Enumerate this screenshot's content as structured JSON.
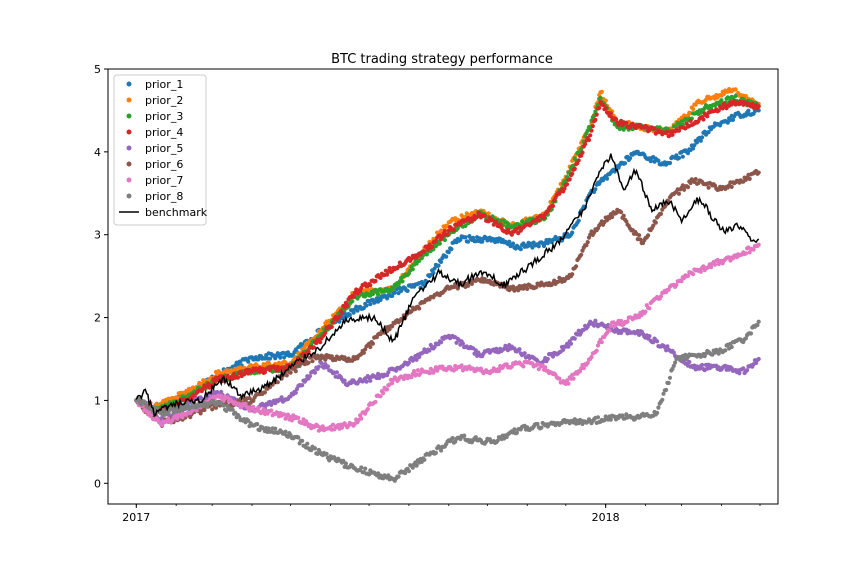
{
  "chart_data": {
    "type": "scatter",
    "title": "BTC trading strategy performance",
    "xlabel": "",
    "ylabel": "",
    "x_axis": {
      "kind": "date",
      "domain": [
        "2016-12-10",
        "2018-05-15"
      ],
      "tick_labels": [
        "2017",
        "2018"
      ],
      "tick_dates": [
        "2017-01-01",
        "2018-01-01"
      ]
    },
    "ylim": [
      -0.25,
      5.0
    ],
    "y_ticks": [
      0,
      1,
      2,
      3,
      4,
      5
    ],
    "grid": false,
    "legend_position": "top-left",
    "series": [
      {
        "name": "prior_1",
        "style": "points",
        "color": "#1f77b4",
        "points": [
          [
            "2017-01-01",
            1.0
          ],
          [
            "2017-01-15",
            0.92
          ],
          [
            "2017-02-05",
            1.05
          ],
          [
            "2017-03-05",
            1.3
          ],
          [
            "2017-04-01",
            1.52
          ],
          [
            "2017-05-01",
            1.55
          ],
          [
            "2017-05-25",
            1.85
          ],
          [
            "2017-06-20",
            2.1
          ],
          [
            "2017-07-20",
            2.3
          ],
          [
            "2017-08-12",
            2.4
          ],
          [
            "2017-09-08",
            2.95
          ],
          [
            "2017-10-05",
            2.95
          ],
          [
            "2017-10-25",
            2.85
          ],
          [
            "2017-11-15",
            2.9
          ],
          [
            "2017-12-05",
            3.0
          ],
          [
            "2017-12-20",
            3.5
          ],
          [
            "2018-01-05",
            3.75
          ],
          [
            "2018-01-25",
            4.0
          ],
          [
            "2018-02-15",
            3.85
          ],
          [
            "2018-03-05",
            4.0
          ],
          [
            "2018-03-25",
            4.3
          ],
          [
            "2018-04-15",
            4.45
          ],
          [
            "2018-04-30",
            4.5
          ]
        ]
      },
      {
        "name": "prior_2",
        "style": "points",
        "color": "#ff7f0e",
        "points": [
          [
            "2017-01-01",
            1.0
          ],
          [
            "2017-01-15",
            0.92
          ],
          [
            "2017-02-10",
            1.1
          ],
          [
            "2017-03-05",
            1.32
          ],
          [
            "2017-04-01",
            1.4
          ],
          [
            "2017-05-01",
            1.45
          ],
          [
            "2017-05-25",
            1.85
          ],
          [
            "2017-06-20",
            2.3
          ],
          [
            "2017-07-20",
            2.35
          ],
          [
            "2017-08-12",
            2.8
          ],
          [
            "2017-09-01",
            3.15
          ],
          [
            "2017-09-25",
            3.28
          ],
          [
            "2017-10-20",
            3.1
          ],
          [
            "2017-11-15",
            3.25
          ],
          [
            "2017-12-01",
            3.7
          ],
          [
            "2017-12-20",
            4.3
          ],
          [
            "2017-12-28",
            4.72
          ],
          [
            "2018-01-10",
            4.35
          ],
          [
            "2018-01-30",
            4.3
          ],
          [
            "2018-02-20",
            4.25
          ],
          [
            "2018-03-15",
            4.6
          ],
          [
            "2018-04-10",
            4.75
          ],
          [
            "2018-04-30",
            4.58
          ]
        ]
      },
      {
        "name": "prior_3",
        "style": "points",
        "color": "#2ca02c",
        "points": [
          [
            "2017-01-01",
            1.0
          ],
          [
            "2017-01-15",
            0.88
          ],
          [
            "2017-02-10",
            1.05
          ],
          [
            "2017-03-05",
            1.25
          ],
          [
            "2017-04-01",
            1.35
          ],
          [
            "2017-05-01",
            1.4
          ],
          [
            "2017-05-25",
            1.8
          ],
          [
            "2017-06-20",
            2.25
          ],
          [
            "2017-07-20",
            2.35
          ],
          [
            "2017-08-12",
            2.75
          ],
          [
            "2017-09-01",
            3.0
          ],
          [
            "2017-09-25",
            3.25
          ],
          [
            "2017-10-20",
            3.1
          ],
          [
            "2017-11-15",
            3.2
          ],
          [
            "2017-12-01",
            3.65
          ],
          [
            "2017-12-20",
            4.3
          ],
          [
            "2017-12-28",
            4.65
          ],
          [
            "2018-01-10",
            4.3
          ],
          [
            "2018-01-30",
            4.3
          ],
          [
            "2018-02-20",
            4.25
          ],
          [
            "2018-03-15",
            4.5
          ],
          [
            "2018-04-10",
            4.65
          ],
          [
            "2018-04-30",
            4.55
          ]
        ]
      },
      {
        "name": "prior_4",
        "style": "points",
        "color": "#d62728",
        "points": [
          [
            "2017-01-01",
            1.0
          ],
          [
            "2017-01-15",
            0.85
          ],
          [
            "2017-02-10",
            1.0
          ],
          [
            "2017-03-05",
            1.25
          ],
          [
            "2017-04-01",
            1.35
          ],
          [
            "2017-05-01",
            1.4
          ],
          [
            "2017-05-25",
            1.75
          ],
          [
            "2017-06-20",
            2.3
          ],
          [
            "2017-07-20",
            2.6
          ],
          [
            "2017-08-12",
            2.8
          ],
          [
            "2017-09-01",
            3.05
          ],
          [
            "2017-09-25",
            3.25
          ],
          [
            "2017-10-20",
            3.0
          ],
          [
            "2017-11-15",
            3.25
          ],
          [
            "2017-12-01",
            3.6
          ],
          [
            "2017-12-20",
            4.2
          ],
          [
            "2017-12-28",
            4.6
          ],
          [
            "2018-01-10",
            4.35
          ],
          [
            "2018-01-30",
            4.3
          ],
          [
            "2018-02-20",
            4.2
          ],
          [
            "2018-03-15",
            4.4
          ],
          [
            "2018-04-10",
            4.6
          ],
          [
            "2018-04-30",
            4.55
          ]
        ]
      },
      {
        "name": "prior_5",
        "style": "points",
        "color": "#9467bd",
        "points": [
          [
            "2017-01-01",
            1.0
          ],
          [
            "2017-01-20",
            0.75
          ],
          [
            "2017-02-10",
            0.95
          ],
          [
            "2017-03-05",
            1.1
          ],
          [
            "2017-04-01",
            0.88
          ],
          [
            "2017-05-01",
            1.05
          ],
          [
            "2017-05-25",
            1.45
          ],
          [
            "2017-06-15",
            1.2
          ],
          [
            "2017-07-10",
            1.3
          ],
          [
            "2017-08-05",
            1.5
          ],
          [
            "2017-09-01",
            1.78
          ],
          [
            "2017-09-25",
            1.55
          ],
          [
            "2017-10-20",
            1.65
          ],
          [
            "2017-11-10",
            1.45
          ],
          [
            "2017-12-01",
            1.65
          ],
          [
            "2017-12-20",
            1.95
          ],
          [
            "2018-01-10",
            1.85
          ],
          [
            "2018-01-30",
            1.8
          ],
          [
            "2018-02-20",
            1.6
          ],
          [
            "2018-03-10",
            1.4
          ],
          [
            "2018-03-30",
            1.4
          ],
          [
            "2018-04-20",
            1.35
          ],
          [
            "2018-04-30",
            1.5
          ]
        ]
      },
      {
        "name": "prior_6",
        "style": "points",
        "color": "#8c564b",
        "points": [
          [
            "2017-01-01",
            1.0
          ],
          [
            "2017-01-20",
            0.72
          ],
          [
            "2017-02-10",
            0.82
          ],
          [
            "2017-03-05",
            0.95
          ],
          [
            "2017-04-01",
            1.0
          ],
          [
            "2017-04-25",
            1.3
          ],
          [
            "2017-05-20",
            1.52
          ],
          [
            "2017-06-20",
            1.5
          ],
          [
            "2017-07-10",
            1.8
          ],
          [
            "2017-08-05",
            2.1
          ],
          [
            "2017-09-01",
            2.35
          ],
          [
            "2017-09-25",
            2.45
          ],
          [
            "2017-10-20",
            2.35
          ],
          [
            "2017-11-15",
            2.4
          ],
          [
            "2017-12-05",
            2.5
          ],
          [
            "2017-12-20",
            3.0
          ],
          [
            "2018-01-10",
            3.3
          ],
          [
            "2018-01-30",
            2.9
          ],
          [
            "2018-02-20",
            3.45
          ],
          [
            "2018-03-10",
            3.65
          ],
          [
            "2018-04-01",
            3.55
          ],
          [
            "2018-04-30",
            3.75
          ]
        ]
      },
      {
        "name": "prior_7",
        "style": "points",
        "color": "#e377c2",
        "points": [
          [
            "2017-01-01",
            1.0
          ],
          [
            "2017-01-20",
            0.72
          ],
          [
            "2017-02-10",
            0.85
          ],
          [
            "2017-03-05",
            1.05
          ],
          [
            "2017-04-01",
            0.9
          ],
          [
            "2017-05-01",
            0.8
          ],
          [
            "2017-05-25",
            0.65
          ],
          [
            "2017-06-20",
            0.72
          ],
          [
            "2017-07-20",
            1.25
          ],
          [
            "2017-08-12",
            1.35
          ],
          [
            "2017-09-08",
            1.4
          ],
          [
            "2017-10-05",
            1.35
          ],
          [
            "2017-10-25",
            1.45
          ],
          [
            "2017-11-15",
            1.4
          ],
          [
            "2017-12-01",
            1.2
          ],
          [
            "2017-12-20",
            1.5
          ],
          [
            "2018-01-05",
            1.9
          ],
          [
            "2018-01-25",
            2.0
          ],
          [
            "2018-02-15",
            2.3
          ],
          [
            "2018-03-05",
            2.5
          ],
          [
            "2018-03-25",
            2.65
          ],
          [
            "2018-04-15",
            2.75
          ],
          [
            "2018-04-30",
            2.88
          ]
        ]
      },
      {
        "name": "prior_8",
        "style": "points",
        "color": "#7f7f7f",
        "points": [
          [
            "2017-01-01",
            1.0
          ],
          [
            "2017-01-20",
            0.85
          ],
          [
            "2017-02-10",
            0.92
          ],
          [
            "2017-03-05",
            0.98
          ],
          [
            "2017-04-01",
            0.7
          ],
          [
            "2017-05-01",
            0.58
          ],
          [
            "2017-05-25",
            0.35
          ],
          [
            "2017-06-20",
            0.18
          ],
          [
            "2017-07-20",
            0.05
          ],
          [
            "2017-08-12",
            0.3
          ],
          [
            "2017-09-08",
            0.55
          ],
          [
            "2017-10-05",
            0.5
          ],
          [
            "2017-10-25",
            0.65
          ],
          [
            "2017-11-15",
            0.7
          ],
          [
            "2017-12-05",
            0.75
          ],
          [
            "2017-12-20",
            0.75
          ],
          [
            "2018-01-10",
            0.8
          ],
          [
            "2018-01-25",
            0.8
          ],
          [
            "2018-02-10",
            0.85
          ],
          [
            "2018-02-25",
            1.5
          ],
          [
            "2018-03-15",
            1.55
          ],
          [
            "2018-04-01",
            1.6
          ],
          [
            "2018-04-20",
            1.75
          ],
          [
            "2018-04-30",
            1.95
          ]
        ]
      },
      {
        "name": "benchmark",
        "style": "line",
        "color": "#000000",
        "points": [
          [
            "2017-01-01",
            1.0
          ],
          [
            "2017-01-08",
            1.1
          ],
          [
            "2017-01-15",
            0.85
          ],
          [
            "2017-02-01",
            0.95
          ],
          [
            "2017-02-20",
            1.0
          ],
          [
            "2017-03-10",
            1.25
          ],
          [
            "2017-03-25",
            1.05
          ],
          [
            "2017-04-15",
            1.2
          ],
          [
            "2017-05-05",
            1.45
          ],
          [
            "2017-05-25",
            1.65
          ],
          [
            "2017-06-12",
            1.95
          ],
          [
            "2017-07-05",
            2.0
          ],
          [
            "2017-07-20",
            1.7
          ],
          [
            "2017-08-05",
            2.25
          ],
          [
            "2017-08-25",
            2.55
          ],
          [
            "2017-09-10",
            2.4
          ],
          [
            "2017-09-25",
            2.55
          ],
          [
            "2017-10-15",
            2.4
          ],
          [
            "2017-11-05",
            2.65
          ],
          [
            "2017-11-25",
            2.9
          ],
          [
            "2017-12-15",
            3.3
          ],
          [
            "2017-12-28",
            3.8
          ],
          [
            "2018-01-05",
            3.95
          ],
          [
            "2018-01-15",
            3.55
          ],
          [
            "2018-01-25",
            3.8
          ],
          [
            "2018-02-05",
            3.3
          ],
          [
            "2018-02-20",
            3.4
          ],
          [
            "2018-03-01",
            3.15
          ],
          [
            "2018-03-15",
            3.45
          ],
          [
            "2018-04-01",
            3.05
          ],
          [
            "2018-04-15",
            3.1
          ],
          [
            "2018-04-25",
            2.95
          ],
          [
            "2018-04-30",
            2.95
          ]
        ]
      }
    ]
  }
}
